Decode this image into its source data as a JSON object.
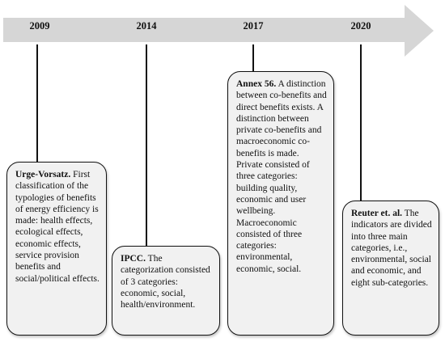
{
  "timeline": {
    "arrow_color": "#d6d6d6",
    "events": [
      {
        "year": "2009",
        "author": "Urge-Vorsatz.",
        "text": "First classification of the typologies of benefits of energy efficiency is made: health effects, ecological effects, economic effects, service provision benefits and social/political effects."
      },
      {
        "year": "2014",
        "author": "IPCC.",
        "text": "The categorization consisted of 3 categories: economic, social, health/environment."
      },
      {
        "year": "2017",
        "author": "Annex 56.",
        "text": "A distinction between co-benefits and direct benefits exists. A distinction between private co-benefits and macroeconomic co-benefits is made. Private consisted of three categories: building quality, economic and user wellbeing. Macroeconomic consisted of three categories: environmental, economic, social."
      },
      {
        "year": "2020",
        "author": "Reuter et. al.",
        "text": "The indicators are divided into three main categories, i.e., environmental, social and economic, and eight sub-categories."
      }
    ]
  }
}
